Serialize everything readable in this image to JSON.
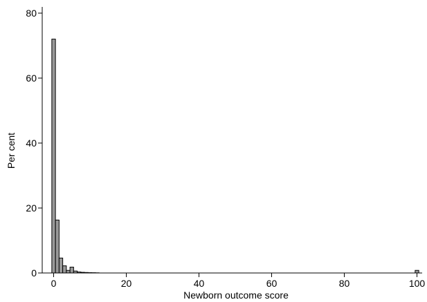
{
  "chart_data": {
    "type": "bar",
    "subtype": "histogram",
    "title": "",
    "xlabel": "Newborn outcome score",
    "ylabel": "Per cent",
    "xlim": [
      -2,
      103
    ],
    "ylim": [
      0,
      82
    ],
    "x_ticks": [
      0,
      20,
      40,
      60,
      80,
      100
    ],
    "y_ticks": [
      0,
      20,
      40,
      60,
      80
    ],
    "bin_width": 1,
    "bar_fill": "#999999",
    "bar_stroke": "#000000",
    "grid": false,
    "legend": "none",
    "bins": [
      {
        "x": 0,
        "value": 72.0
      },
      {
        "x": 1,
        "value": 16.3
      },
      {
        "x": 2,
        "value": 4.6
      },
      {
        "x": 3,
        "value": 2.2
      },
      {
        "x": 4,
        "value": 0.8
      },
      {
        "x": 5,
        "value": 1.8
      },
      {
        "x": 6,
        "value": 0.6
      },
      {
        "x": 7,
        "value": 0.3
      },
      {
        "x": 8,
        "value": 0.2
      },
      {
        "x": 9,
        "value": 0.15
      },
      {
        "x": 10,
        "value": 0.1
      },
      {
        "x": 11,
        "value": 0.08
      },
      {
        "x": 12,
        "value": 0.05
      },
      {
        "x": 100,
        "value": 0.8
      }
    ]
  }
}
